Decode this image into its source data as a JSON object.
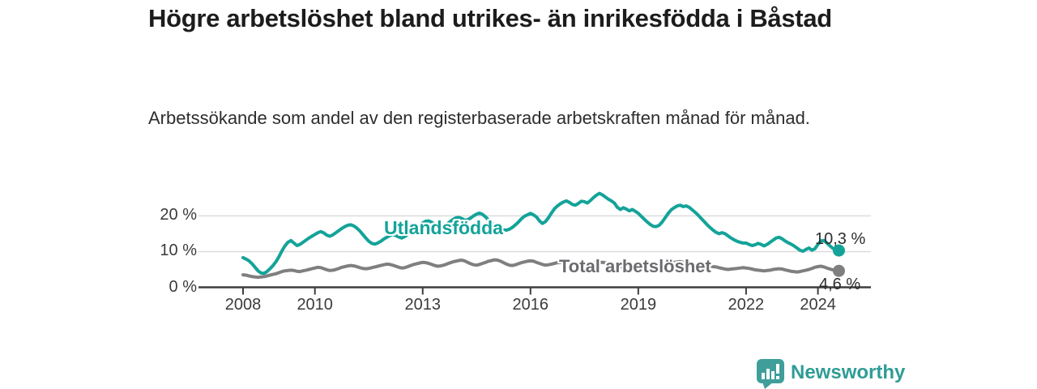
{
  "header": {
    "title": "Högre arbetslöshet bland utrikes- än inrikesfödda i Båstad",
    "subtitle": "Arbetssökande som andel av den registerbaserade arbetskraften månad för månad."
  },
  "branding": {
    "logo_text": "Newsworthy",
    "logo_icon": "bar-chart-speech-bubble-icon",
    "icon_color": "#3f9e9a",
    "text_color": "#2f9c96"
  },
  "chart_data": {
    "type": "line",
    "title": "Högre arbetslöshet bland utrikes- än inrikesfödda i Båstad",
    "subtitle": "Arbetssökande som andel av den registerbaserade arbetskraften månad för månad.",
    "xlabel": "",
    "ylabel": "",
    "x_unit": "month",
    "x_start_year": 2008,
    "x_end_label": "2024",
    "ylim": [
      0,
      28
    ],
    "grid": "horizontal",
    "legend": "inline-labels-on-lines",
    "axis_color": "#3e3e3e",
    "gridline_color": "#dcdcdc",
    "x_ticks": [
      {
        "year": 2008,
        "label": "2008"
      },
      {
        "year": 2010,
        "label": "2010"
      },
      {
        "year": 2013,
        "label": "2013"
      },
      {
        "year": 2016,
        "label": "2016"
      },
      {
        "year": 2019,
        "label": "2019"
      },
      {
        "year": 2022,
        "label": "2022"
      },
      {
        "year": 2024,
        "label": "2024"
      }
    ],
    "y_ticks": [
      {
        "value": 0,
        "label": "0 %"
      },
      {
        "value": 10,
        "label": "10 %"
      },
      {
        "value": 20,
        "label": "20 %"
      }
    ],
    "series": [
      {
        "name": "Utlandsfödda",
        "color": "#13a399",
        "label_color": "#13a399",
        "end_label": "10,3 %",
        "end_value": 10.3,
        "values": [
          8.3,
          7.9,
          7.4,
          6.6,
          5.6,
          4.6,
          4.0,
          3.9,
          4.4,
          5.2,
          6.1,
          7.2,
          8.6,
          10.2,
          11.6,
          12.6,
          13.1,
          12.4,
          11.7,
          12.0,
          12.6,
          13.2,
          13.8,
          14.3,
          14.8,
          15.3,
          15.6,
          15.2,
          14.6,
          14.3,
          14.7,
          15.3,
          15.9,
          16.5,
          17.0,
          17.4,
          17.5,
          17.2,
          16.6,
          15.8,
          14.8,
          13.8,
          12.9,
          12.3,
          12.1,
          12.4,
          12.9,
          13.5,
          14.0,
          14.5,
          14.8,
          14.5,
          14.1,
          13.8,
          14.2,
          14.8,
          15.5,
          16.2,
          16.9,
          17.5,
          18.0,
          18.5,
          18.6,
          18.2,
          17.6,
          17.0,
          16.7,
          17.0,
          17.6,
          18.3,
          18.9,
          19.4,
          19.6,
          19.3,
          18.8,
          18.9,
          19.4,
          20.0,
          20.5,
          20.8,
          20.4,
          19.7,
          18.8,
          18.0,
          17.3,
          16.7,
          16.3,
          16.1,
          16.0,
          16.3,
          16.8,
          17.5,
          18.3,
          19.2,
          19.9,
          20.3,
          20.7,
          20.3,
          19.7,
          18.6,
          17.9,
          18.4,
          19.5,
          20.8,
          22.0,
          22.8,
          23.4,
          23.9,
          24.2,
          23.8,
          23.2,
          23.0,
          23.5,
          24.1,
          24.0,
          23.6,
          24.3,
          25.1,
          25.8,
          26.3,
          25.9,
          25.3,
          24.7,
          24.2,
          23.6,
          22.4,
          21.8,
          22.3,
          21.9,
          21.4,
          21.8,
          21.3,
          20.7,
          19.9,
          19.1,
          18.3,
          17.6,
          17.1,
          17.0,
          17.4,
          18.3,
          19.5,
          20.7,
          21.7,
          22.3,
          22.8,
          23.0,
          22.6,
          22.8,
          22.4,
          21.7,
          21.0,
          20.2,
          19.3,
          18.4,
          17.5,
          16.7,
          16.0,
          15.4,
          15.0,
          15.3,
          15.0,
          14.4,
          13.8,
          13.3,
          12.9,
          12.6,
          12.4,
          12.4,
          12.0,
          11.7,
          11.9,
          12.3,
          12.0,
          11.6,
          12.0,
          12.6,
          13.2,
          13.8,
          14.0,
          13.6,
          13.0,
          12.5,
          12.1,
          11.6,
          11.0,
          10.4,
          10.1,
          10.6,
          11.0,
          10.4,
          10.8,
          12.0,
          13.0,
          13.1,
          12.4,
          11.6,
          10.9,
          10.5,
          10.3
        ]
      },
      {
        "name": "Total arbetslöshet",
        "color": "#7f7f7f",
        "label_color": "#6b6b70",
        "end_label": "4,6 %",
        "end_value": 4.6,
        "values": [
          3.5,
          3.4,
          3.2,
          3.0,
          2.9,
          2.8,
          2.9,
          3.0,
          3.2,
          3.4,
          3.6,
          3.8,
          4.1,
          4.4,
          4.6,
          4.7,
          4.8,
          4.7,
          4.5,
          4.4,
          4.6,
          4.8,
          5.0,
          5.2,
          5.4,
          5.6,
          5.5,
          5.2,
          4.9,
          4.7,
          4.8,
          5.0,
          5.3,
          5.6,
          5.8,
          6.0,
          6.1,
          6.0,
          5.8,
          5.5,
          5.3,
          5.2,
          5.3,
          5.5,
          5.7,
          5.9,
          6.1,
          6.3,
          6.5,
          6.4,
          6.2,
          5.9,
          5.6,
          5.4,
          5.5,
          5.8,
          6.1,
          6.4,
          6.6,
          6.8,
          7.0,
          6.9,
          6.7,
          6.4,
          6.1,
          5.9,
          6.0,
          6.2,
          6.5,
          6.8,
          7.1,
          7.3,
          7.5,
          7.6,
          7.4,
          7.0,
          6.6,
          6.3,
          6.2,
          6.4,
          6.7,
          7.0,
          7.3,
          7.5,
          7.7,
          7.6,
          7.3,
          6.9,
          6.5,
          6.2,
          6.1,
          6.3,
          6.6,
          6.9,
          7.1,
          7.3,
          7.4,
          7.3,
          7.0,
          6.7,
          6.4,
          6.2,
          6.3,
          6.5,
          6.7,
          6.9,
          7.0,
          7.1,
          7.2,
          7.1,
          6.9,
          6.6,
          6.3,
          6.1,
          6.2,
          6.4,
          6.6,
          6.8,
          6.9,
          7.0,
          7.0,
          6.9,
          6.7,
          6.4,
          6.1,
          5.9,
          5.8,
          5.9,
          6.1,
          6.3,
          6.5,
          6.6,
          6.7,
          6.6,
          6.4,
          6.1,
          5.9,
          5.7,
          5.8,
          6.0,
          6.2,
          6.4,
          6.6,
          6.8,
          7.0,
          7.1,
          7.2,
          7.0,
          6.8,
          6.6,
          6.5,
          6.4,
          6.2,
          6.0,
          5.9,
          5.8,
          5.9,
          5.8,
          5.7,
          5.5,
          5.3,
          5.1,
          5.0,
          5.1,
          5.2,
          5.3,
          5.4,
          5.5,
          5.4,
          5.3,
          5.1,
          4.9,
          4.8,
          4.7,
          4.6,
          4.7,
          4.8,
          5.0,
          5.1,
          5.2,
          5.1,
          4.9,
          4.7,
          4.5,
          4.4,
          4.3,
          4.4,
          4.6,
          4.8,
          5.0,
          5.3,
          5.6,
          5.8,
          5.9,
          5.7,
          5.4,
          5.1,
          4.9,
          4.7,
          4.6
        ]
      }
    ]
  }
}
